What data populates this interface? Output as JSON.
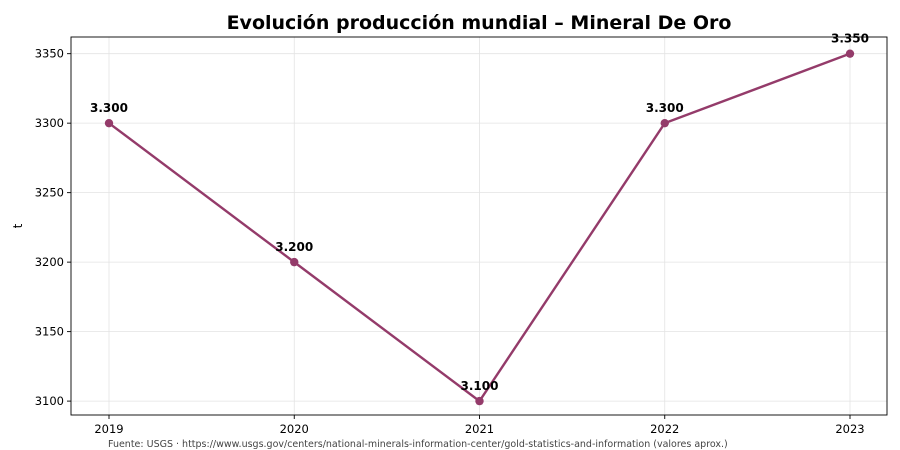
{
  "chart_data": {
    "type": "line",
    "title": "Evolución producción mundial – Mineral De Oro",
    "xlabel": "",
    "ylabel": "t",
    "categories": [
      "2019",
      "2020",
      "2021",
      "2022",
      "2023"
    ],
    "series": [
      {
        "values": [
          3300,
          3200,
          3100,
          3300,
          3350
        ],
        "data_labels": [
          "3.300",
          "3.200",
          "3.100",
          "3.300",
          "3.350"
        ],
        "color": "#943b6a"
      }
    ],
    "y_ticks": [
      "3100",
      "3150",
      "3200",
      "3250",
      "3300",
      "3350"
    ],
    "ylim": [
      3090,
      3362
    ],
    "grid": true,
    "source": "Fuente: USGS · https://www.usgs.gov/centers/national-minerals-information-center/gold-statistics-and-information (valores aprox.)"
  }
}
